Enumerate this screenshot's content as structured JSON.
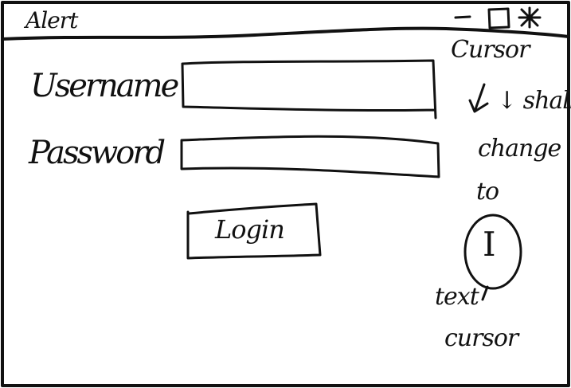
{
  "window": {
    "title": "Alert",
    "controls": {
      "minimize_icon": "minus-line",
      "maximize_icon": "square-outline",
      "close_icon": "asterisk-cross"
    }
  },
  "form": {
    "username_label": "Username",
    "username_value": "",
    "password_label": "Password",
    "password_value": "",
    "login_label": "Login"
  },
  "annotation": {
    "lines": [
      "Cursor",
      "↓ shall",
      "change",
      "to",
      "text",
      "cursor"
    ],
    "cursor_glyph": "I"
  }
}
